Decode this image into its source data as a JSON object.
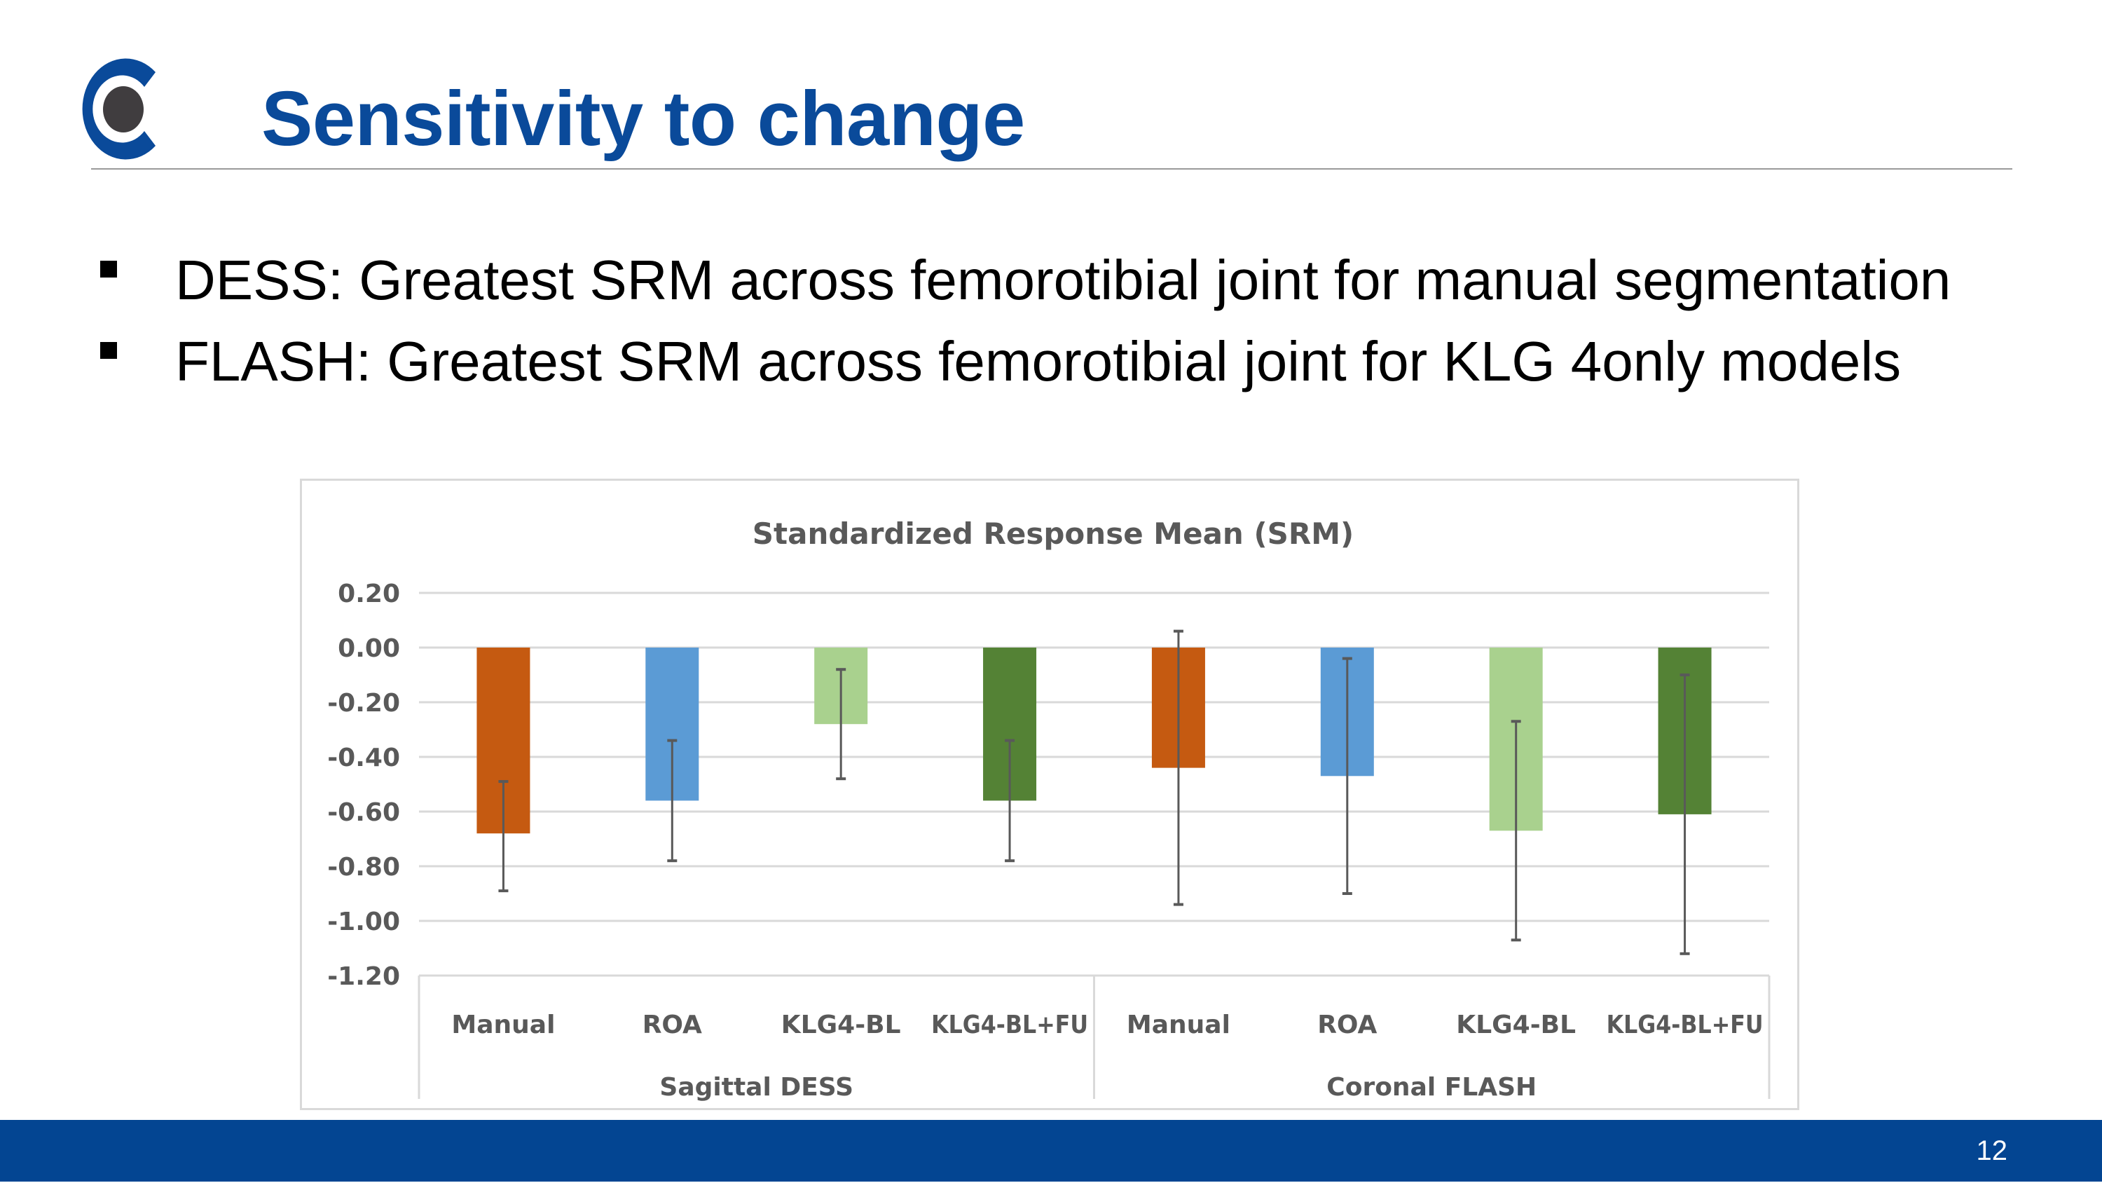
{
  "slide": {
    "title": "Sensitivity to change",
    "page_number": "12",
    "logo": "company-logo-c",
    "bullets": [
      "DESS: Greatest SRM across femorotibial joint for manual segmentation",
      "FLASH: Greatest SRM across femorotibial joint for KLG 4only models"
    ]
  },
  "colors": {
    "brand_blue": "#0a4a9a",
    "footer_blue": "#034592",
    "manual": "#c55a11",
    "roa": "#5b9bd5",
    "klg4_bl": "#a9d18e",
    "klg4_bl_fu": "#548235"
  },
  "chart_data": {
    "type": "bar",
    "title": "Standardized Response Mean (SRM)",
    "xlabel": "",
    "ylabel": "",
    "ylim": [
      -1.2,
      0.2
    ],
    "yticks": [
      0.2,
      0.0,
      -0.2,
      -0.4,
      -0.6,
      -0.8,
      -1.0,
      -1.2
    ],
    "ytick_labels": [
      "0.20",
      "0.00",
      "-0.20",
      "-0.40",
      "-0.60",
      "-0.80",
      "-1.00",
      "-1.20"
    ],
    "grid": true,
    "legend": "none",
    "groups": [
      {
        "name": "Sagittal DESS",
        "categories": [
          "Manual",
          "ROA",
          "KLG4-BL",
          "KLG4-BL+FU"
        ]
      },
      {
        "name": "Coronal FLASH",
        "categories": [
          "Manual",
          "ROA",
          "KLG4-BL",
          "KLG4-BL+FU"
        ]
      }
    ],
    "categories": [
      "Manual",
      "ROA",
      "KLG4-BL",
      "KLG4-BL+FU",
      "Manual",
      "ROA",
      "KLG4-BL",
      "KLG4-BL+FU"
    ],
    "values": [
      -0.68,
      -0.56,
      -0.28,
      -0.56,
      -0.44,
      -0.47,
      -0.67,
      -0.61
    ],
    "error_bars": [
      {
        "low": -0.89,
        "high": -0.49
      },
      {
        "low": -0.78,
        "high": -0.34
      },
      {
        "low": -0.48,
        "high": -0.08
      },
      {
        "low": -0.78,
        "high": -0.34
      },
      {
        "low": -0.94,
        "high": 0.06
      },
      {
        "low": -0.9,
        "high": -0.04
      },
      {
        "low": -1.07,
        "high": -0.27
      },
      {
        "low": -1.12,
        "high": -0.1
      }
    ],
    "bar_color_keys": [
      "manual",
      "roa",
      "klg4_bl",
      "klg4_bl_fu",
      "manual",
      "roa",
      "klg4_bl",
      "klg4_bl_fu"
    ]
  }
}
